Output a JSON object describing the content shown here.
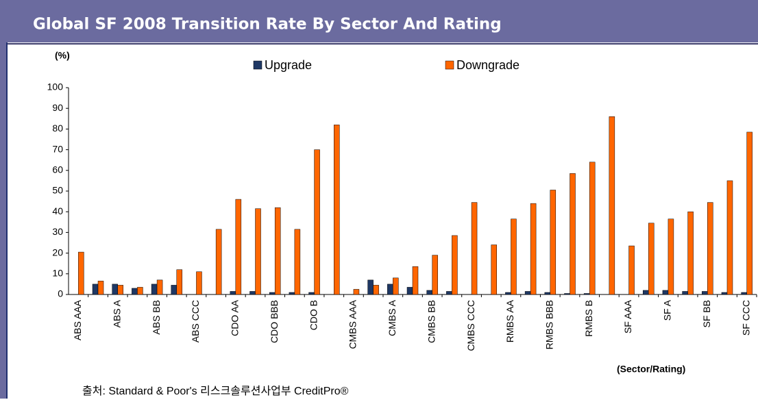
{
  "chart_data": {
    "type": "bar",
    "title": "Global SF 2008 Transition Rate By Sector And Rating",
    "y_label": "(%)",
    "x_label": "(Sector/Rating)",
    "source": "출처: Standard & Poor's 리스크솔루션사업부 CreditPro®",
    "categories": [
      "ABS AAA",
      null,
      "ABS A",
      null,
      "ABS BB",
      null,
      "ABS CCC",
      null,
      "CDO AA",
      null,
      "CDO BBB",
      null,
      "CDO B",
      null,
      "CMBS AAA",
      null,
      "CMBS A",
      null,
      "CMBS BB",
      null,
      "CMBS CCC",
      null,
      "RMBS AA",
      null,
      "RMBS BBB",
      null,
      "RMBS B",
      null,
      "SF AAA",
      null,
      "SF A",
      null,
      "SF BB",
      null,
      "SF CCC"
    ],
    "series": [
      {
        "name": "Upgrade",
        "color": "#1f3864",
        "values": [
          0,
          5,
          5,
          3,
          5,
          4.5,
          0,
          0,
          1.5,
          1.5,
          1,
          1,
          1,
          0,
          0,
          7,
          5,
          3.5,
          2,
          1.5,
          0,
          0,
          1,
          1.5,
          1,
          0.5,
          0.5,
          0,
          0,
          2,
          2,
          1.5,
          1.5,
          1,
          1
        ]
      },
      {
        "name": "Downgrade",
        "color": "#ff6600",
        "values": [
          20.5,
          6.5,
          4.5,
          3.5,
          7,
          12,
          11,
          31.5,
          46,
          41.5,
          42,
          31.5,
          70,
          82,
          2.5,
          4.5,
          8,
          13.5,
          19,
          28.5,
          44.5,
          24,
          36.5,
          44,
          50.5,
          58.5,
          64,
          86,
          23.5,
          34.5,
          36.5,
          40,
          44.5,
          55,
          78.5
        ]
      }
    ],
    "ylim": [
      0,
      100
    ],
    "yticks": [
      0,
      10,
      20,
      30,
      40,
      50,
      60,
      70,
      80,
      90,
      100
    ],
    "grid": false
  }
}
